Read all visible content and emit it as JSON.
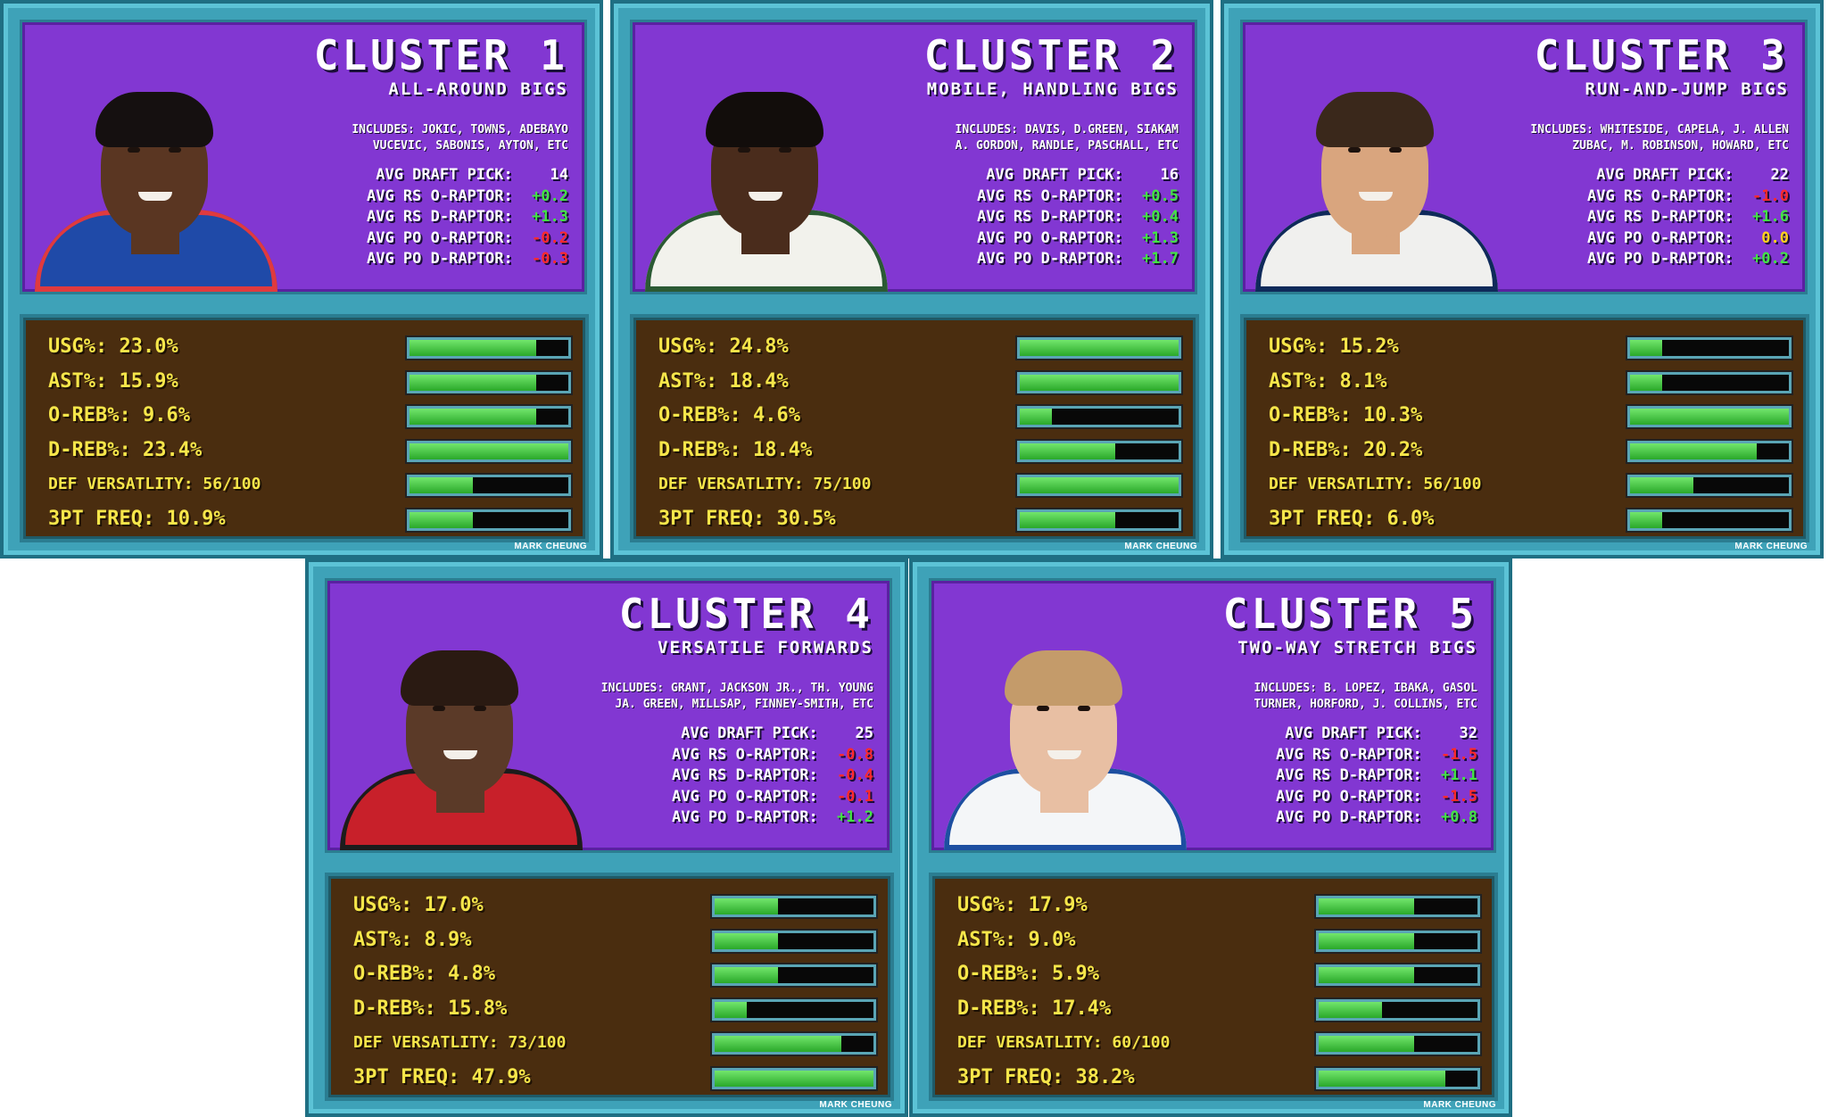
{
  "colors": {
    "card_frame": "#3ea2b8",
    "top_panel": "#8237d2",
    "bottom_panel": "#4a2d0f",
    "metric_text": "#f6e64a",
    "bar_fill": "#3cbf3a",
    "positive": "#43e443",
    "negative": "#ff2a2a",
    "zero": "#ffd21a"
  },
  "labels": {
    "draft": "AVG DRAFT PICK:",
    "rs_o": "AVG RS O-RAPTOR:",
    "rs_d": "AVG RS D-RAPTOR:",
    "po_o": "AVG PO O-RAPTOR:",
    "po_d": "AVG PO D-RAPTOR:"
  },
  "clusters": [
    {
      "title": "CLUSTER 1",
      "subtitle": "ALL-AROUND BIGS",
      "includes_1": "INCLUDES: JOKIC, TOWNS, ADEBAYO",
      "includes_2": "VUCEVIC, SABONIS, AYTON, ETC",
      "draft_pick": "14",
      "rs_o": "+0.2",
      "rs_d": "+1.3",
      "po_o": "-0.2",
      "po_d": "-0.3",
      "player_icon": "player-photo-76ers",
      "metrics": [
        {
          "label": "USG%: 23.0%",
          "level": 0.8
        },
        {
          "label": "AST%: 15.9%",
          "level": 0.8
        },
        {
          "label": "O-REB%: 9.6%",
          "level": 0.8
        },
        {
          "label": "D-REB%: 23.4%",
          "level": 1.0
        },
        {
          "label": "DEF VERSATLITY: 56/100",
          "level": 0.4
        },
        {
          "label": "3PT FREQ: 10.9%",
          "level": 0.4
        }
      ],
      "credit": "MARK CHEUNG"
    },
    {
      "title": "CLUSTER 2",
      "subtitle": "MOBILE, HANDLING BIGS",
      "includes_1": "INCLUDES: DAVIS, D.GREEN, SIAKAM",
      "includes_2": "A. GORDON, RANDLE, PASCHALL, ETC",
      "draft_pick": "16",
      "rs_o": "+0.5",
      "rs_d": "+0.4",
      "po_o": "+1.3",
      "po_d": "+1.7",
      "player_icon": "player-photo-bucks",
      "metrics": [
        {
          "label": "USG%: 24.8%",
          "level": 1.0
        },
        {
          "label": "AST%: 18.4%",
          "level": 1.0
        },
        {
          "label": "O-REB%: 4.6%",
          "level": 0.2
        },
        {
          "label": "D-REB%: 18.4%",
          "level": 0.6
        },
        {
          "label": "DEF VERSATLITY: 75/100",
          "level": 1.0
        },
        {
          "label": "3PT FREQ: 30.5%",
          "level": 0.6
        }
      ],
      "credit": "MARK CHEUNG"
    },
    {
      "title": "CLUSTER 3",
      "subtitle": "RUN-AND-JUMP BIGS",
      "includes_1": "INCLUDES: WHITESIDE, CAPELA, J. ALLEN",
      "includes_2": "ZUBAC, M. ROBINSON, HOWARD, ETC",
      "draft_pick": "22",
      "rs_o": "-1.0",
      "rs_d": "+1.6",
      "po_o": "0.0",
      "po_d": "+0.2",
      "player_icon": "player-photo-jazz",
      "metrics": [
        {
          "label": "USG%: 15.2%",
          "level": 0.2
        },
        {
          "label": "AST%: 8.1%",
          "level": 0.2
        },
        {
          "label": "O-REB%: 10.3%",
          "level": 1.0
        },
        {
          "label": "D-REB%: 20.2%",
          "level": 0.8
        },
        {
          "label": "DEF VERSATLITY: 56/100",
          "level": 0.4
        },
        {
          "label": "3PT FREQ: 6.0%",
          "level": 0.2
        }
      ],
      "credit": "MARK CHEUNG"
    },
    {
      "title": "CLUSTER 4",
      "subtitle": "VERSATILE FORWARDS",
      "includes_1": "INCLUDES: GRANT, JACKSON JR., TH. YOUNG",
      "includes_2": "JA. GREEN, MILLSAP, FINNEY-SMITH, ETC",
      "draft_pick": "25",
      "rs_o": "-0.8",
      "rs_d": "-0.4",
      "po_o": "-0.1",
      "po_d": "+1.2",
      "player_icon": "player-photo-rockets",
      "metrics": [
        {
          "label": "USG%: 17.0%",
          "level": 0.4
        },
        {
          "label": "AST%: 8.9%",
          "level": 0.4
        },
        {
          "label": "O-REB%: 4.8%",
          "level": 0.4
        },
        {
          "label": "D-REB%: 15.8%",
          "level": 0.2
        },
        {
          "label": "DEF VERSATLITY: 73/100",
          "level": 0.8
        },
        {
          "label": "3PT FREQ: 47.9%",
          "level": 1.0
        }
      ],
      "credit": "MARK CHEUNG"
    },
    {
      "title": "CLUSTER 5",
      "subtitle": "TWO-WAY STRETCH BIGS",
      "includes_1": "INCLUDES: B. LOPEZ, IBAKA, GASOL",
      "includes_2": "TURNER, HORFORD, J. COLLINS, ETC",
      "draft_pick": "32",
      "rs_o": "-1.5",
      "rs_d": "+1.1",
      "po_o": "-1.5",
      "po_d": "+0.8",
      "player_icon": "player-photo-mavericks",
      "metrics": [
        {
          "label": "USG%: 17.9%",
          "level": 0.6
        },
        {
          "label": "AST%: 9.0%",
          "level": 0.6
        },
        {
          "label": "O-REB%: 5.9%",
          "level": 0.6
        },
        {
          "label": "D-REB%: 17.4%",
          "level": 0.4
        },
        {
          "label": "DEF VERSATLITY: 60/100",
          "level": 0.6
        },
        {
          "label": "3PT FREQ: 38.2%",
          "level": 0.8
        }
      ],
      "credit": "MARK CHEUNG"
    }
  ]
}
